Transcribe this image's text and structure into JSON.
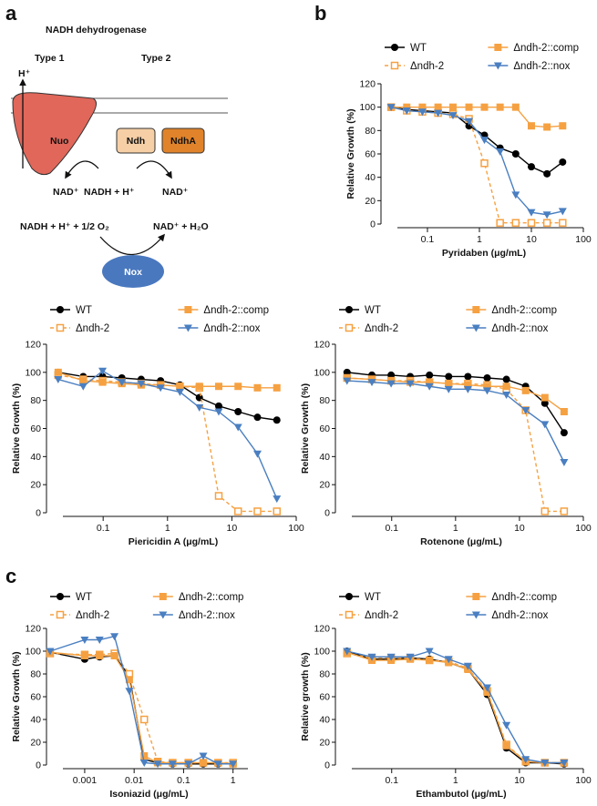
{
  "panels": [
    "a",
    "b",
    "c"
  ],
  "diagram": {
    "title": "NADH dehydrogenase",
    "type1": "Type 1",
    "type2": "Type 2",
    "proton": "H⁺",
    "nuo": "Nuo",
    "ndh": "Ndh",
    "ndha": "NdhA",
    "nad_left": "NAD⁺",
    "nadh": "NADH + H⁺",
    "nad_right": "NAD⁺",
    "nox_substrate": "NADH + H⁺ + 1/2 O₂",
    "nox_product": "NAD⁺ + H₂O",
    "nox": "Nox"
  },
  "chart_data": [
    {
      "type": "line",
      "xlabel": "Pyridaben (μg/mL)",
      "ylabel": "Relative Growth (%)",
      "xscale": "log",
      "x": [
        0.02,
        0.04,
        0.08,
        0.16,
        0.31,
        0.63,
        1.25,
        2.5,
        5,
        10,
        20,
        40
      ],
      "xlim": [
        0.015,
        100
      ],
      "xticks": [
        0.1,
        1,
        10,
        100
      ],
      "ylim": [
        0,
        120
      ],
      "yticks": [
        0,
        20,
        40,
        60,
        80,
        100,
        120
      ],
      "series": [
        {
          "name": "WT",
          "color": "#000000",
          "marker": "circle",
          "dashed": false,
          "values": [
            100,
            98,
            97,
            96,
            95,
            84,
            76,
            65,
            60,
            49,
            43,
            53
          ]
        },
        {
          "name": "Δndh-2",
          "color": "#f5a142",
          "marker": "square-open",
          "dashed": true,
          "values": [
            100,
            97,
            96,
            95,
            94,
            90,
            52,
            1,
            1,
            1,
            1,
            1
          ]
        },
        {
          "name": "Δndh-2::comp",
          "color": "#f5a142",
          "marker": "square",
          "dashed": false,
          "values": [
            100,
            100,
            100,
            100,
            100,
            100,
            100,
            100,
            100,
            84,
            83,
            84
          ]
        },
        {
          "name": "Δndh-2::nox",
          "color": "#4a7fc1",
          "marker": "triangle-down",
          "dashed": false,
          "values": [
            100,
            97,
            96,
            95,
            93,
            88,
            72,
            62,
            25,
            10,
            8,
            11
          ]
        }
      ]
    },
    {
      "type": "line",
      "xlabel": "Piericidin A (μg/mL)",
      "ylabel": "Relative Growth (%)",
      "xscale": "log",
      "x": [
        0.02,
        0.049,
        0.098,
        0.195,
        0.39,
        0.78,
        1.56,
        3.125,
        6.25,
        12.5,
        25,
        50
      ],
      "xlim": [
        0.015,
        100
      ],
      "xticks": [
        0.1,
        1,
        10,
        100
      ],
      "ylim": [
        0,
        120
      ],
      "yticks": [
        0,
        20,
        40,
        60,
        80,
        100,
        120
      ],
      "series": [
        {
          "name": "WT",
          "color": "#000000",
          "marker": "circle",
          "dashed": false,
          "values": [
            100,
            97,
            97,
            96,
            95,
            94,
            91,
            82,
            76,
            72,
            68,
            66
          ]
        },
        {
          "name": "Δndh-2",
          "color": "#f5a142",
          "marker": "square-open",
          "dashed": true,
          "values": [
            98,
            95,
            94,
            93,
            92,
            91,
            90,
            89,
            12,
            1,
            1,
            1
          ]
        },
        {
          "name": "Δndh-2::comp",
          "color": "#f5a142",
          "marker": "square",
          "dashed": false,
          "values": [
            100,
            94,
            93,
            92,
            91,
            91,
            90,
            90,
            90,
            90,
            89,
            89
          ]
        },
        {
          "name": "Δndh-2::nox",
          "color": "#4a7fc1",
          "marker": "triangle-down",
          "dashed": false,
          "values": [
            95,
            90,
            101,
            93,
            92,
            89,
            86,
            75,
            72,
            61,
            42,
            10
          ]
        }
      ]
    },
    {
      "type": "line",
      "xlabel": "Rotenone (μg/mL)",
      "ylabel": "Relative Growth (%)",
      "xscale": "log",
      "x": [
        0.02,
        0.049,
        0.098,
        0.195,
        0.39,
        0.78,
        1.56,
        3.125,
        6.25,
        12.5,
        25,
        50
      ],
      "xlim": [
        0.015,
        100
      ],
      "xticks": [
        0.1,
        1,
        10,
        100
      ],
      "ylim": [
        0,
        120
      ],
      "yticks": [
        0,
        20,
        40,
        60,
        80,
        100,
        120
      ],
      "series": [
        {
          "name": "WT",
          "color": "#000000",
          "marker": "circle",
          "dashed": false,
          "values": [
            100,
            98,
            98,
            97,
            98,
            97,
            97,
            96,
            95,
            90,
            78,
            57
          ]
        },
        {
          "name": "Δndh-2",
          "color": "#f5a142",
          "marker": "square-open",
          "dashed": true,
          "values": [
            96,
            95,
            94,
            94,
            93,
            92,
            92,
            91,
            88,
            73,
            1,
            1
          ]
        },
        {
          "name": "Δndh-2::comp",
          "color": "#f5a142",
          "marker": "square",
          "dashed": false,
          "values": [
            96,
            95,
            94,
            93,
            93,
            92,
            91,
            90,
            90,
            87,
            82,
            72
          ]
        },
        {
          "name": "Δndh-2::nox",
          "color": "#4a7fc1",
          "marker": "triangle-down",
          "dashed": false,
          "values": [
            94,
            93,
            92,
            92,
            90,
            88,
            88,
            87,
            84,
            73,
            63,
            36
          ]
        }
      ]
    },
    {
      "type": "line",
      "xlabel": "Isoniazid (μg/mL)",
      "ylabel": "Relative Growth (%)",
      "xscale": "log",
      "x": [
        0.0002,
        0.001,
        0.002,
        0.004,
        0.008,
        0.016,
        0.03,
        0.06,
        0.125,
        0.25,
        0.5,
        1
      ],
      "xlim": [
        0.0002,
        2
      ],
      "xticks": [
        0.001,
        0.01,
        0.1,
        1
      ],
      "ylim": [
        0,
        120
      ],
      "yticks": [
        0,
        20,
        40,
        60,
        80,
        100,
        120
      ],
      "series": [
        {
          "name": "WT",
          "color": "#000000",
          "marker": "circle",
          "dashed": false,
          "values": [
            99,
            93,
            95,
            96,
            78,
            5,
            2,
            1,
            1,
            1,
            1,
            1
          ]
        },
        {
          "name": "Δndh-2",
          "color": "#f5a142",
          "marker": "square-open",
          "dashed": true,
          "values": [
            98,
            97,
            97,
            98,
            80,
            40,
            3,
            2,
            2,
            2,
            2,
            2
          ]
        },
        {
          "name": "Δndh-2::comp",
          "color": "#f5a142",
          "marker": "square",
          "dashed": false,
          "values": [
            99,
            96,
            96,
            96,
            75,
            8,
            2,
            2,
            2,
            2,
            2,
            1
          ]
        },
        {
          "name": "Δndh-2::nox",
          "color": "#4a7fc1",
          "marker": "triangle-down",
          "dashed": false,
          "values": [
            100,
            110,
            110,
            113,
            65,
            2,
            1,
            1,
            1,
            8,
            1,
            1
          ]
        }
      ]
    },
    {
      "type": "line",
      "xlabel": "Ethambutol (μg/mL)",
      "ylabel": "Relative growth (%)",
      "xscale": "log",
      "x": [
        0.02,
        0.049,
        0.098,
        0.195,
        0.39,
        0.78,
        1.56,
        3.125,
        6.25,
        12.5,
        25,
        50
      ],
      "xlim": [
        0.015,
        100
      ],
      "xticks": [
        0.1,
        1,
        10,
        100
      ],
      "ylim": [
        0,
        120
      ],
      "yticks": [
        0,
        20,
        40,
        60,
        80,
        100,
        120
      ],
      "series": [
        {
          "name": "WT",
          "color": "#000000",
          "marker": "circle",
          "dashed": false,
          "values": [
            100,
            93,
            93,
            94,
            93,
            90,
            84,
            62,
            15,
            2,
            2,
            1
          ]
        },
        {
          "name": "Δndh-2",
          "color": "#f5a142",
          "marker": "square-open",
          "dashed": true,
          "values": [
            98,
            94,
            94,
            94,
            92,
            91,
            85,
            65,
            18,
            3,
            2,
            2
          ]
        },
        {
          "name": "Δndh-2::comp",
          "color": "#f5a142",
          "marker": "square",
          "dashed": false,
          "values": [
            99,
            92,
            92,
            93,
            92,
            90,
            84,
            64,
            17,
            3,
            2,
            2
          ]
        },
        {
          "name": "Δndh-2::nox",
          "color": "#4a7fc1",
          "marker": "triangle-down",
          "dashed": false,
          "values": [
            100,
            95,
            95,
            95,
            100,
            93,
            87,
            68,
            35,
            5,
            2,
            2
          ]
        }
      ]
    }
  ]
}
